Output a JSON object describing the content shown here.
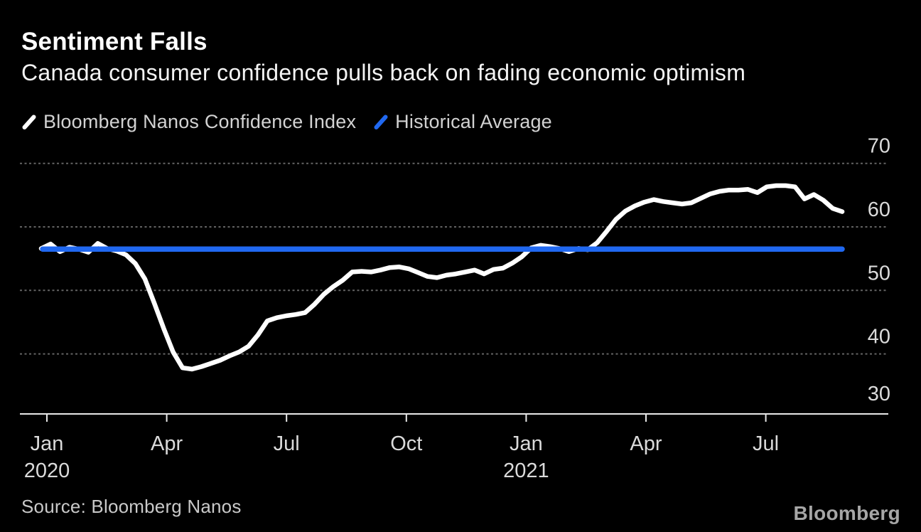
{
  "header": {
    "title": "Sentiment Falls",
    "subtitle": "Canada consumer confidence pulls back on fading economic optimism"
  },
  "legend": {
    "items": [
      {
        "label": "Bloomberg Nanos Confidence Index",
        "color": "#ffffff"
      },
      {
        "label": "Historical Average",
        "color": "#2068f0"
      }
    ]
  },
  "footer": {
    "source": "Source:  Bloomberg Nanos",
    "logo": "Bloomberg"
  },
  "colors": {
    "background": "#000000",
    "series_line": "#ffffff",
    "average_line": "#2068f0",
    "gridline": "#636363",
    "axis_line": "#e8e8e8",
    "tick_label": "#dadada"
  },
  "chart_data": {
    "type": "line",
    "title": "Sentiment Falls",
    "subtitle": "Canada consumer confidence pulls back on fading economic optimism",
    "frequency": "weekly",
    "x_range": [
      "Jan 2020",
      "Sep 2021"
    ],
    "ylim": [
      30,
      72
    ],
    "grid": "dotted-horizontal",
    "y_axis_side": "right",
    "y_ticks": [
      70,
      60,
      50,
      40,
      30
    ],
    "x_ticks": [
      {
        "label": "Jan",
        "sublabel": "2020",
        "month": 0
      },
      {
        "label": "Apr",
        "month": 3
      },
      {
        "label": "Jul",
        "month": 6
      },
      {
        "label": "Oct",
        "month": 9
      },
      {
        "label": "Jan",
        "sublabel": "2021",
        "month": 12
      },
      {
        "label": "Apr",
        "month": 15
      },
      {
        "label": "Jul",
        "month": 18
      }
    ],
    "series": [
      {
        "name": "Bloomberg Nanos Confidence Index",
        "color": "#ffffff",
        "values": [
          56.6,
          57.3,
          56.1,
          56.8,
          56.5,
          56.0,
          57.4,
          56.6,
          56.2,
          55.6,
          54.2,
          51.8,
          48.0,
          44.0,
          40.3,
          37.8,
          37.6,
          38.0,
          38.5,
          39.0,
          39.7,
          40.3,
          41.2,
          43.0,
          45.2,
          45.7,
          46.0,
          46.2,
          46.5,
          47.8,
          49.4,
          50.6,
          51.6,
          52.9,
          53.0,
          52.9,
          53.2,
          53.6,
          53.7,
          53.4,
          52.8,
          52.2,
          52.0,
          52.4,
          52.6,
          52.9,
          53.2,
          52.6,
          53.3,
          53.5,
          54.3,
          55.3,
          56.7,
          57.1,
          56.9,
          56.6,
          56.1,
          56.6,
          56.4,
          57.5,
          59.3,
          61.2,
          62.5,
          63.3,
          63.9,
          64.3,
          64.0,
          63.8,
          63.6,
          63.8,
          64.5,
          65.2,
          65.6,
          65.8,
          65.8,
          65.9,
          65.4,
          66.3,
          66.5,
          66.5,
          66.3,
          64.4,
          65.1,
          64.2,
          62.9,
          62.4
        ]
      },
      {
        "name": "Historical Average",
        "color": "#2068f0",
        "constant_value": 56.5
      }
    ]
  }
}
